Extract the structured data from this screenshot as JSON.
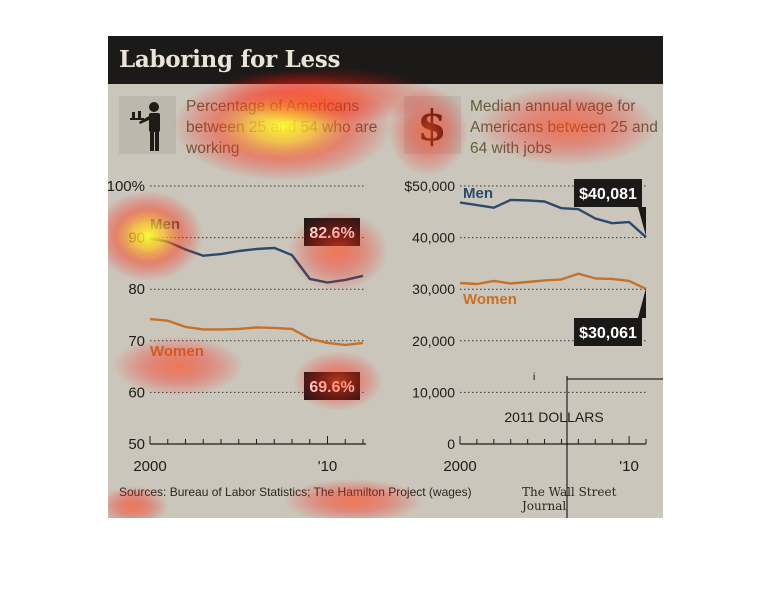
{
  "title": "Laboring for Less",
  "left_panel": {
    "icon": "waiter-icon",
    "subtitle": "Percentage of Americans between 25 and 54 who are working"
  },
  "right_panel": {
    "icon": "dollar-sign-icon",
    "subtitle": "Median annual wage for Americans between 25 and 64 with jobs"
  },
  "footer": {
    "sources": "Sources: Bureau of Labor Statistics; The Hamilton Project (wages)",
    "publisher": "The Wall Street Journal"
  },
  "colors": {
    "men": "#2c4a6e",
    "women": "#c5712a",
    "header_bg": "#1c1a18",
    "panel_bg": "#cbc6bb",
    "callout_bg": "#1c1a18"
  },
  "chart_data": [
    {
      "type": "line",
      "x": [
        2000,
        2001,
        2002,
        2003,
        2004,
        2005,
        2006,
        2007,
        2008,
        2009,
        2010,
        2011,
        2012
      ],
      "xticks": [
        "2000",
        "'10"
      ],
      "yticks": [
        "100%",
        "90",
        "80",
        "70",
        "60",
        "50"
      ],
      "ylim": [
        50,
        100
      ],
      "grid": true,
      "series": [
        {
          "name": "Men",
          "values": [
            89.8,
            89.2,
            87.7,
            86.5,
            86.8,
            87.4,
            87.8,
            88.0,
            86.6,
            82.0,
            81.3,
            81.8,
            82.6
          ],
          "callout": "82.6%"
        },
        {
          "name": "Women",
          "values": [
            74.2,
            73.9,
            72.7,
            72.2,
            72.2,
            72.3,
            72.6,
            72.5,
            72.3,
            70.4,
            69.6,
            69.2,
            69.6
          ],
          "callout": "69.6%"
        }
      ]
    },
    {
      "type": "line",
      "x": [
        2000,
        2001,
        2002,
        2003,
        2004,
        2005,
        2006,
        2007,
        2008,
        2009,
        2010,
        2011
      ],
      "xticks": [
        "2000",
        "'10"
      ],
      "yticks": [
        "$50,000",
        "40,000",
        "30,000",
        "20,000",
        "10,000",
        "0"
      ],
      "ylim": [
        0,
        50000
      ],
      "unit_note": "2011 DOLLARS",
      "grid": true,
      "series": [
        {
          "name": "Men",
          "values": [
            46800,
            46300,
            45800,
            47300,
            47200,
            47000,
            45700,
            45500,
            43700,
            42800,
            43000,
            40081
          ],
          "callout": "$40,081"
        },
        {
          "name": "Women",
          "values": [
            31200,
            31000,
            31600,
            31100,
            31400,
            31700,
            31900,
            33000,
            32100,
            32000,
            31600,
            30061
          ],
          "callout": "$30,061"
        }
      ]
    }
  ]
}
